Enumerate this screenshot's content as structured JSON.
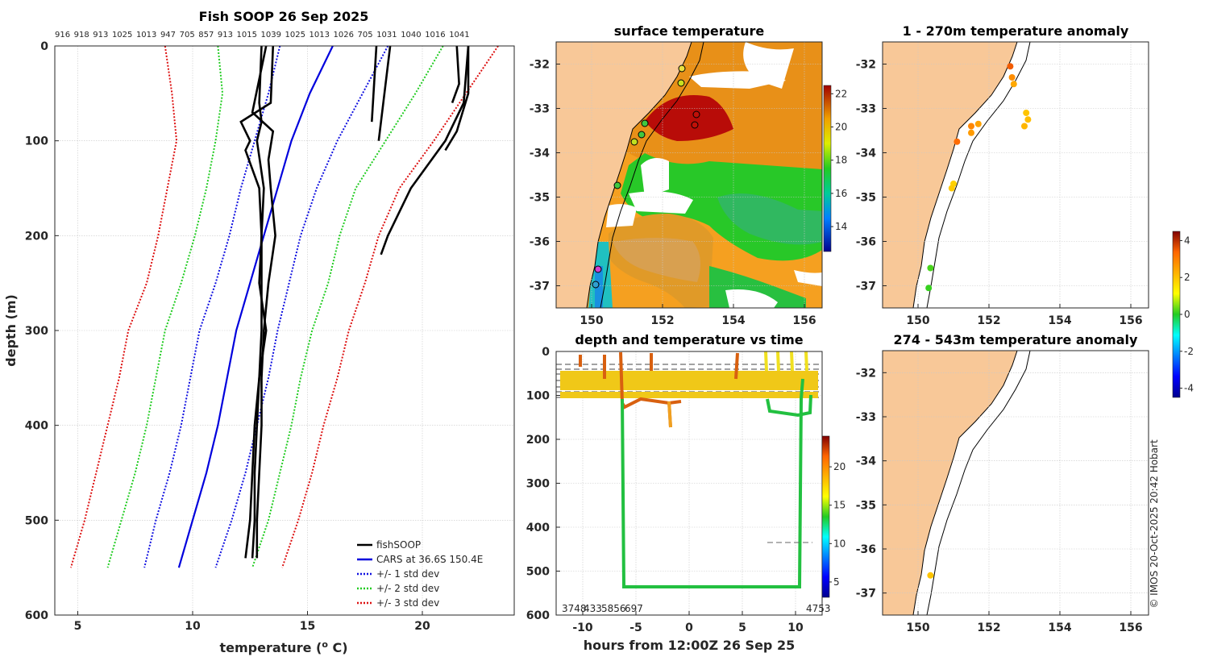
{
  "colors": {
    "fishSOOP": "#000000",
    "CARS": "#0000dd",
    "std1": "#1010e0",
    "std2": "#22cc22",
    "std3": "#dd1111",
    "land": "#f8c898",
    "coast": "#000000"
  },
  "chart_data": [
    {
      "type": "line",
      "title": "Fish SOOP 26 Sep 2025",
      "xlabel": "temperature (",
      "xlabel_sup": "o",
      "xlabel_end": " C)",
      "ylabel": "depth (m)",
      "xlim": [
        4,
        24
      ],
      "ylim": [
        600,
        0
      ],
      "xticks": [
        "5",
        "10",
        "15",
        "20"
      ],
      "yticks": [
        "0",
        "100",
        "200",
        "300",
        "400",
        "500",
        "600"
      ],
      "top_labels": [
        "916",
        "918",
        "913",
        "1025",
        "1013",
        "947",
        "705",
        "857",
        "913",
        "1015",
        "1039",
        "1025",
        "1013",
        "1026",
        "705",
        "1031",
        "1040",
        "1016",
        "1041"
      ],
      "legend": [
        {
          "label": "fishSOOP",
          "style": "solid-black"
        },
        {
          "label": "CARS at 36.6S 150.4E",
          "style": "solid-blue"
        },
        {
          "label": "+/- 1 std dev",
          "style": "dotted-blue"
        },
        {
          "label": "+/- 2 std dev",
          "style": "dotted-green"
        },
        {
          "label": "+/- 3 std dev",
          "style": "dotted-red"
        }
      ],
      "depth": [
        0,
        50,
        100,
        150,
        200,
        250,
        300,
        350,
        400,
        450,
        500,
        550
      ],
      "series": [
        {
          "name": "CARS mean",
          "values": [
            16.1,
            15.1,
            14.3,
            13.7,
            13.1,
            12.5,
            11.9,
            11.5,
            11.1,
            10.6,
            10.0,
            9.4
          ]
        },
        {
          "name": "+1 std",
          "values": [
            18.5,
            17.4,
            16.3,
            15.4,
            14.7,
            14.2,
            13.7,
            13.3,
            12.8,
            12.3,
            11.7,
            11.0
          ]
        },
        {
          "name": "-1 std",
          "values": [
            13.8,
            13.3,
            12.7,
            12.1,
            11.6,
            11.0,
            10.3,
            9.9,
            9.5,
            9.0,
            8.4,
            7.9
          ]
        },
        {
          "name": "+2 std",
          "values": [
            20.9,
            19.7,
            18.4,
            17.1,
            16.4,
            15.9,
            15.2,
            14.7,
            14.3,
            13.8,
            13.3,
            12.6
          ]
        },
        {
          "name": "-2 std",
          "values": [
            11.1,
            11.3,
            11.0,
            10.6,
            10.1,
            9.5,
            8.8,
            8.4,
            8.0,
            7.5,
            6.9,
            6.3
          ]
        },
        {
          "name": "+3 std",
          "values": [
            23.3,
            21.9,
            20.5,
            19.0,
            18.1,
            17.5,
            16.8,
            16.3,
            15.7,
            15.2,
            14.6,
            13.9
          ]
        },
        {
          "name": "-3 std",
          "values": [
            8.8,
            9.1,
            9.3,
            8.9,
            8.5,
            8.0,
            7.2,
            6.8,
            6.3,
            5.8,
            5.3,
            4.7
          ]
        }
      ],
      "fishsoop_profiles": [
        {
          "depth": [
            0,
            60,
            80,
            100,
            110,
            150,
            200,
            250,
            300,
            350,
            400,
            450,
            500,
            540
          ],
          "values": [
            13.5,
            13.4,
            12.1,
            12.5,
            12.3,
            12.9,
            13.0,
            12.9,
            13.2,
            12.9,
            12.7,
            12.6,
            12.5,
            12.3
          ]
        },
        {
          "depth": [
            0,
            60,
            80,
            100,
            150,
            200,
            250,
            300,
            350,
            400,
            450,
            500,
            540
          ],
          "values": [
            13.0,
            12.9,
            13.0,
            12.8,
            13.1,
            13.0,
            13.0,
            13.0,
            12.9,
            12.8,
            12.7,
            12.7,
            12.6
          ]
        },
        {
          "depth": [
            0,
            70,
            90,
            120,
            150,
            200,
            250,
            300,
            350,
            400,
            450,
            500,
            540
          ],
          "values": [
            13.2,
            12.6,
            13.5,
            13.3,
            13.4,
            13.6,
            13.3,
            13.1,
            13.0,
            13.0,
            12.9,
            12.8,
            12.8
          ]
        },
        {
          "depth": [
            0,
            60,
            100,
            150,
            200,
            220
          ],
          "values": [
            22.0,
            21.8,
            21.0,
            19.5,
            18.5,
            18.2
          ]
        },
        {
          "depth": [
            0,
            50,
            90,
            110
          ],
          "values": [
            22.0,
            22.0,
            21.5,
            21.0
          ]
        },
        {
          "depth": [
            0,
            40,
            60
          ],
          "values": [
            21.5,
            21.6,
            21.3
          ]
        },
        {
          "depth": [
            0,
            60,
            100
          ],
          "values": [
            18.6,
            18.3,
            18.1
          ]
        },
        {
          "depth": [
            0,
            80
          ],
          "values": [
            18.0,
            17.8
          ]
        }
      ]
    },
    {
      "type": "heatmap",
      "title": "surface temperature",
      "xticks": [
        "150",
        "152",
        "154",
        "156"
      ],
      "yticks": [
        "-32",
        "-33",
        "-34",
        "-35",
        "-36",
        "-37"
      ],
      "xlim": [
        149.0,
        156.5
      ],
      "ylim": [
        -37.5,
        -31.5
      ],
      "colorbar_ticks": [
        "14",
        "16",
        "18",
        "20",
        "22"
      ],
      "colorbar_range": [
        12.5,
        22.5
      ]
    },
    {
      "type": "line",
      "title": "depth and temperature vs time",
      "xlabel": "hours from 12:00Z 26 Sep 25",
      "xticks": [
        "-10",
        "-5",
        "0",
        "5",
        "10"
      ],
      "yticks": [
        "0",
        "100",
        "200",
        "300",
        "400",
        "500",
        "600"
      ],
      "xlim": [
        -12.5,
        12.5
      ],
      "ylim": [
        600,
        0
      ],
      "colorbar_ticks": [
        "5",
        "10",
        "15",
        "20"
      ],
      "colorbar_range": [
        3,
        24
      ],
      "bottom_labels": [
        "3748",
        "433",
        "5856",
        "697",
        "4753"
      ]
    },
    {
      "type": "scatter",
      "title": "1 - 270m temperature anomaly",
      "xticks": [
        "150",
        "152",
        "154",
        "156"
      ],
      "yticks": [
        "-32",
        "-33",
        "-34",
        "-35",
        "-36",
        "-37"
      ],
      "xlim": [
        149.0,
        156.5
      ],
      "ylim": [
        -37.5,
        -31.5
      ],
      "points": [
        {
          "lon": 152.6,
          "lat": -32.05,
          "anom": 3.5
        },
        {
          "lon": 152.65,
          "lat": -32.3,
          "anom": 2.8
        },
        {
          "lon": 152.7,
          "lat": -32.45,
          "anom": 2.4
        },
        {
          "lon": 151.7,
          "lat": -33.35,
          "anom": 2.5
        },
        {
          "lon": 151.5,
          "lat": -33.4,
          "anom": 2.9
        },
        {
          "lon": 151.5,
          "lat": -33.55,
          "anom": 2.6
        },
        {
          "lon": 151.1,
          "lat": -33.75,
          "anom": 3.3
        },
        {
          "lon": 153.05,
          "lat": -33.1,
          "anom": 2.0
        },
        {
          "lon": 153.1,
          "lat": -33.25,
          "anom": 2.1
        },
        {
          "lon": 153.0,
          "lat": -33.4,
          "anom": 2.2
        },
        {
          "lon": 151.0,
          "lat": -34.7,
          "anom": 1.8
        },
        {
          "lon": 150.95,
          "lat": -34.8,
          "anom": 1.9
        },
        {
          "lon": 150.35,
          "lat": -36.6,
          "anom": 0.2
        },
        {
          "lon": 150.3,
          "lat": -37.05,
          "anom": 0.1
        }
      ]
    },
    {
      "type": "scatter",
      "title": "274 - 543m temperature anomaly",
      "xticks": [
        "150",
        "152",
        "154",
        "156"
      ],
      "yticks": [
        "-32",
        "-33",
        "-34",
        "-35",
        "-36",
        "-37"
      ],
      "xlim": [
        149.0,
        156.5
      ],
      "ylim": [
        -37.5,
        -31.5
      ],
      "points": [
        {
          "lon": 150.35,
          "lat": -36.6,
          "anom": 2.0
        }
      ]
    },
    {
      "type": "colorbar",
      "ticks": [
        "4",
        "2",
        "0",
        "-2",
        "-4"
      ],
      "range": [
        -4.5,
        4.5
      ]
    }
  ],
  "credit": "© IMOS 20-Oct-2025 20:42 Hobart"
}
